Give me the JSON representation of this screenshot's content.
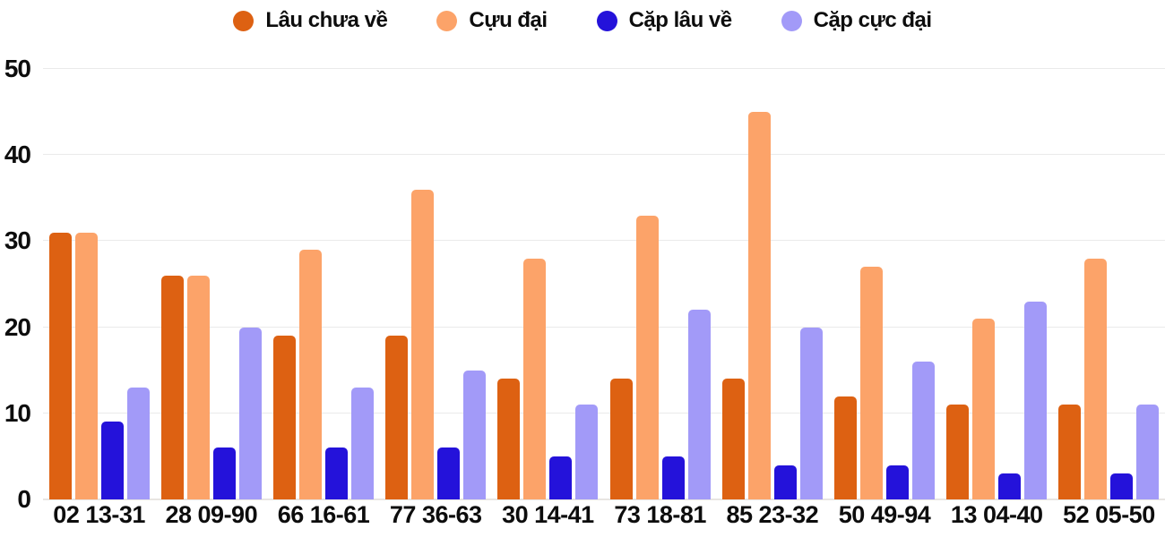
{
  "chart_data": {
    "type": "bar",
    "title": "",
    "xlabel": "",
    "ylabel": "",
    "ylim": [
      0,
      50
    ],
    "yticks": [
      0,
      10,
      20,
      30,
      40,
      50
    ],
    "grid": true,
    "legend_position": "top",
    "background_color": "#ffffff",
    "grid_color": "#eaeaea",
    "axis_text_color": "#0d0d0d",
    "categories": [
      "02 13-31",
      "28 09-90",
      "66 16-61",
      "77 36-63",
      "30 14-41",
      "73 18-81",
      "85 23-32",
      "50 49-94",
      "13 04-40",
      "52 05-50"
    ],
    "series": [
      {
        "name": "Lâu chưa về",
        "color": "#dd6112",
        "values": [
          31,
          26,
          19,
          19,
          14,
          14,
          14,
          12,
          11,
          11
        ]
      },
      {
        "name": "Cựu đại",
        "color": "#fca369",
        "values": [
          31,
          26,
          29,
          36,
          28,
          33,
          45,
          27,
          21,
          28
        ]
      },
      {
        "name": "Cặp lâu về",
        "color": "#2412da",
        "values": [
          9,
          6,
          6,
          6,
          5,
          5,
          4,
          4,
          3,
          3
        ]
      },
      {
        "name": "Cặp cực đại",
        "color": "#a29af8",
        "values": [
          13,
          20,
          13,
          15,
          11,
          22,
          20,
          16,
          23,
          11
        ]
      }
    ]
  }
}
